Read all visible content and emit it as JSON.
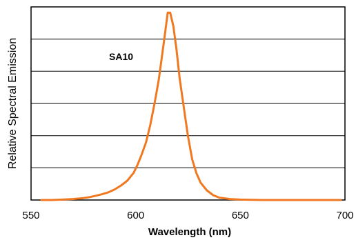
{
  "chart_data": {
    "type": "line",
    "xlabel": "Wavelength (nm)",
    "ylabel": "Relative Spectral Emission",
    "xlim": [
      550,
      700
    ],
    "ylim": [
      0,
      1.0
    ],
    "x_ticks": [
      "550",
      "600",
      "650",
      "700"
    ],
    "y_ticks_shown": false,
    "grid": "horizontal",
    "grid_values": [
      0.167,
      0.333,
      0.5,
      0.667,
      0.833
    ],
    "annotation": "SA10",
    "line_color": "#f07820",
    "series": [
      {
        "x": [
          555,
          560,
          565,
          570,
          575,
          578,
          581,
          584,
          587,
          590,
          593,
          596,
          599,
          601,
          603,
          605,
          607,
          609,
          611,
          612.5,
          614,
          615.3,
          616.5,
          618,
          619.5,
          621,
          623,
          625,
          627,
          629,
          631,
          634,
          637,
          640,
          645,
          650,
          660,
          670,
          680,
          690,
          698
        ],
        "y": [
          0.0,
          0.0,
          0.002,
          0.005,
          0.01,
          0.015,
          0.022,
          0.03,
          0.04,
          0.055,
          0.075,
          0.1,
          0.14,
          0.185,
          0.24,
          0.3,
          0.39,
          0.5,
          0.62,
          0.74,
          0.86,
          0.97,
          0.97,
          0.9,
          0.78,
          0.63,
          0.48,
          0.33,
          0.21,
          0.14,
          0.09,
          0.05,
          0.025,
          0.012,
          0.005,
          0.002,
          0.0,
          0.0,
          0.0,
          0.0,
          0.0
        ]
      }
    ]
  }
}
